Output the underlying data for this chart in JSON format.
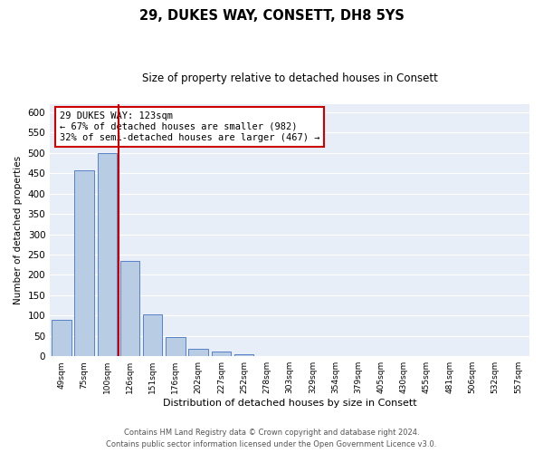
{
  "title": "29, DUKES WAY, CONSETT, DH8 5YS",
  "subtitle": "Size of property relative to detached houses in Consett",
  "xlabel": "Distribution of detached houses by size in Consett",
  "ylabel": "Number of detached properties",
  "bar_labels": [
    "49sqm",
    "75sqm",
    "100sqm",
    "126sqm",
    "151sqm",
    "176sqm",
    "202sqm",
    "227sqm",
    "252sqm",
    "278sqm",
    "303sqm",
    "329sqm",
    "354sqm",
    "379sqm",
    "405sqm",
    "430sqm",
    "455sqm",
    "481sqm",
    "506sqm",
    "532sqm",
    "557sqm"
  ],
  "bar_values": [
    90,
    458,
    500,
    235,
    104,
    47,
    19,
    11,
    6,
    1,
    1,
    0,
    1,
    0,
    1,
    0,
    0,
    1,
    0,
    1,
    1
  ],
  "bar_color": "#b8cce4",
  "bar_edgecolor": "#4472c4",
  "property_line_label": "29 DUKES WAY: 123sqm",
  "annotation_line1": "← 67% of detached houses are smaller (982)",
  "annotation_line2": "32% of semi-detached houses are larger (467) →",
  "annotation_box_color": "#ffffff",
  "annotation_box_edgecolor": "#cc0000",
  "property_line_color": "#cc0000",
  "ylim": [
    0,
    620
  ],
  "yticks": [
    0,
    50,
    100,
    150,
    200,
    250,
    300,
    350,
    400,
    450,
    500,
    550,
    600
  ],
  "bg_color": "#e8eef7",
  "footer1": "Contains HM Land Registry data © Crown copyright and database right 2024.",
  "footer2": "Contains public sector information licensed under the Open Government Licence v3.0."
}
